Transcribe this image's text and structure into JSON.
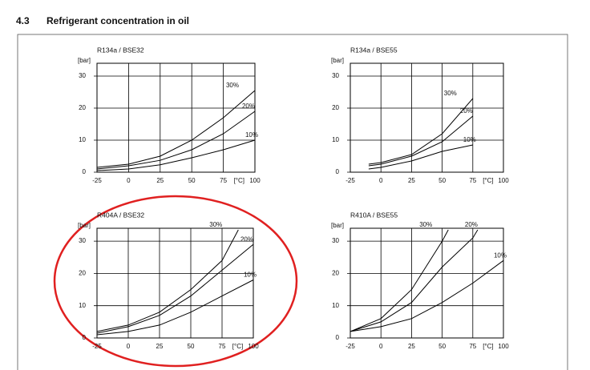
{
  "heading": {
    "number": "4.3",
    "title": "Refrigerant concentration in oil"
  },
  "chart_data": [
    {
      "type": "line",
      "title": "R134a / BSE32",
      "ylabel": "[bar]",
      "xlabel": "[°C]",
      "xlim": [
        -25,
        100
      ],
      "ylim": [
        0,
        34
      ],
      "xticks": [
        -25,
        0,
        25,
        50,
        75,
        100
      ],
      "yticks": [
        0,
        10,
        20,
        30
      ],
      "grid": true,
      "color": "#000000",
      "series": [
        {
          "name": "30%",
          "x": [
            -25,
            0,
            25,
            50,
            75,
            100
          ],
          "values": [
            1.5,
            2.5,
            5,
            10,
            17,
            25.5
          ]
        },
        {
          "name": "20%",
          "x": [
            -25,
            0,
            25,
            50,
            75,
            100
          ],
          "values": [
            1,
            2,
            3.7,
            7,
            12,
            19
          ]
        },
        {
          "name": "10%",
          "x": [
            -25,
            0,
            25,
            50,
            75,
            100
          ],
          "values": [
            0.5,
            1,
            2.3,
            4.5,
            7,
            10
          ]
        }
      ]
    },
    {
      "type": "line",
      "title": "R134a / BSE55",
      "ylabel": "[bar]",
      "xlabel": "[°C]",
      "xlim": [
        -25,
        100
      ],
      "ylim": [
        0,
        34
      ],
      "xticks": [
        -25,
        0,
        25,
        50,
        75,
        100
      ],
      "yticks": [
        0,
        10,
        20,
        30
      ],
      "grid": true,
      "color": "#000000",
      "series": [
        {
          "name": "30%",
          "x": [
            -10,
            0,
            25,
            50,
            75
          ],
          "values": [
            2.5,
            3,
            5.5,
            12,
            23
          ]
        },
        {
          "name": "20%",
          "x": [
            -10,
            0,
            25,
            50,
            75
          ],
          "values": [
            2,
            2.5,
            5,
            9.5,
            17.5
          ]
        },
        {
          "name": "10%",
          "x": [
            -10,
            0,
            25,
            50,
            75
          ],
          "values": [
            1,
            1.5,
            3.5,
            6.5,
            8.5
          ]
        }
      ]
    },
    {
      "type": "line",
      "title": "R404A / BSE32",
      "ylabel": "[bar]",
      "xlabel": "[°C]",
      "xlim": [
        -25,
        100
      ],
      "ylim": [
        0,
        34
      ],
      "xticks": [
        -25,
        0,
        25,
        50,
        75,
        100
      ],
      "yticks": [
        0,
        10,
        20,
        30
      ],
      "grid": true,
      "color": "#000000",
      "series": [
        {
          "name": "30%",
          "x": [
            -25,
            0,
            25,
            50,
            75,
            88
          ],
          "values": [
            2,
            4,
            8,
            15,
            24,
            33.5
          ]
        },
        {
          "name": "20%",
          "x": [
            -25,
            0,
            25,
            50,
            75,
            100
          ],
          "values": [
            1.5,
            3.5,
            7,
            13,
            21,
            29
          ]
        },
        {
          "name": "10%",
          "x": [
            -25,
            0,
            25,
            50,
            75,
            100
          ],
          "values": [
            1,
            2,
            4,
            8,
            13,
            18
          ]
        }
      ]
    },
    {
      "type": "line",
      "title": "R410A / BSE55",
      "ylabel": "[bar]",
      "xlabel": "[°C]",
      "xlim": [
        -25,
        100
      ],
      "ylim": [
        0,
        34
      ],
      "xticks": [
        -25,
        0,
        25,
        50,
        75,
        100
      ],
      "yticks": [
        0,
        10,
        20,
        30
      ],
      "grid": true,
      "color": "#000000",
      "series": [
        {
          "name": "30%",
          "x": [
            -25,
            0,
            25,
            50,
            55
          ],
          "values": [
            2,
            6,
            15,
            30,
            33.5
          ]
        },
        {
          "name": "20%",
          "x": [
            -25,
            0,
            25,
            50,
            75,
            79
          ],
          "values": [
            2,
            5,
            11,
            22,
            31,
            33.5
          ]
        },
        {
          "name": "10%",
          "x": [
            -25,
            0,
            25,
            50,
            75,
            100
          ],
          "values": [
            2,
            3.5,
            6,
            11,
            17,
            24
          ]
        }
      ]
    }
  ]
}
